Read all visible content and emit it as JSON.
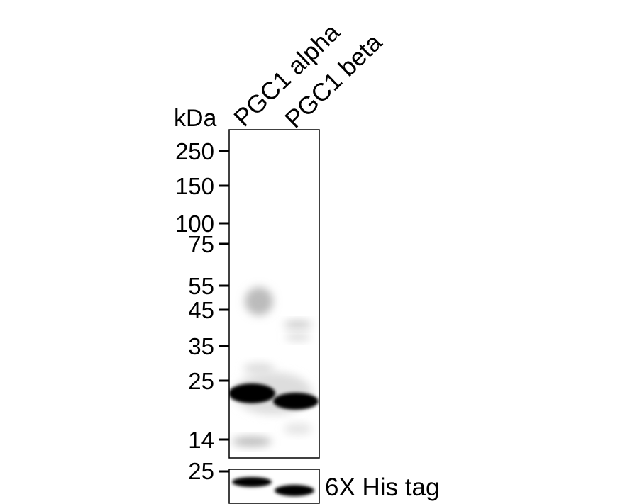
{
  "unit_label": "kDa",
  "lanes": [
    "PGC1 alpha",
    "PGC1 beta"
  ],
  "markers": [
    "250",
    "150",
    "100",
    "75",
    "55",
    "45",
    "35",
    "25",
    "14"
  ],
  "lower_panel": {
    "marker": "25",
    "label": "6X His tag"
  }
}
